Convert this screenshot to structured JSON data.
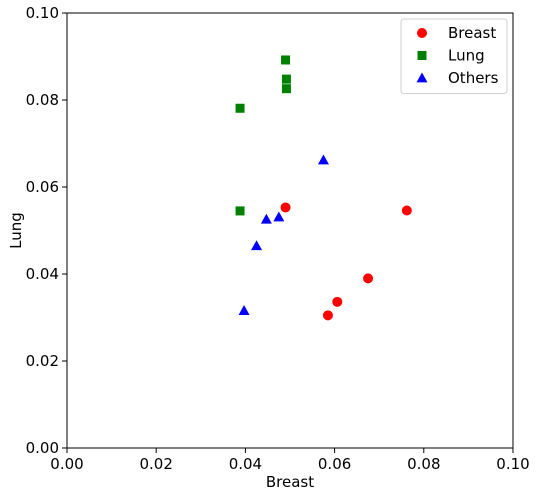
{
  "chart_data": {
    "type": "scatter",
    "title": "",
    "xlabel": "Breast",
    "ylabel": "Lung",
    "xlim": [
      0,
      0.1
    ],
    "ylim": [
      0,
      0.1
    ],
    "xticks": [
      "0.00",
      "0.02",
      "0.04",
      "0.06",
      "0.08",
      "0.10"
    ],
    "yticks": [
      "0.00",
      "0.02",
      "0.04",
      "0.06",
      "0.08",
      "0.10"
    ],
    "grid": false,
    "legend_position": "top-right",
    "series": [
      {
        "name": "Breast",
        "marker": "circle",
        "color": "#ff0000",
        "points": [
          {
            "x": 0.049,
            "y": 0.0553
          },
          {
            "x": 0.0762,
            "y": 0.0546
          },
          {
            "x": 0.0675,
            "y": 0.039
          },
          {
            "x": 0.0606,
            "y": 0.0336
          },
          {
            "x": 0.0585,
            "y": 0.0305
          }
        ]
      },
      {
        "name": "Lung",
        "marker": "square",
        "color": "#008000",
        "points": [
          {
            "x": 0.049,
            "y": 0.0892
          },
          {
            "x": 0.0492,
            "y": 0.0848
          },
          {
            "x": 0.0492,
            "y": 0.0826
          },
          {
            "x": 0.0388,
            "y": 0.0781
          },
          {
            "x": 0.0388,
            "y": 0.0545
          }
        ]
      },
      {
        "name": "Others",
        "marker": "triangle",
        "color": "#0000ff",
        "points": [
          {
            "x": 0.0575,
            "y": 0.0662
          },
          {
            "x": 0.0447,
            "y": 0.0526
          },
          {
            "x": 0.0475,
            "y": 0.0531
          },
          {
            "x": 0.0425,
            "y": 0.0465
          },
          {
            "x": 0.0397,
            "y": 0.0316
          }
        ]
      }
    ]
  }
}
